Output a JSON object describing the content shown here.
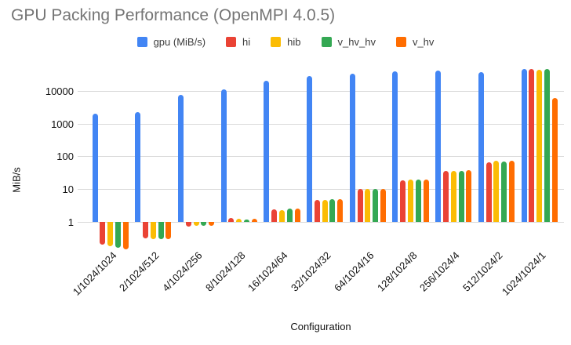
{
  "chart_data": {
    "type": "bar",
    "title": "GPU Packing Performance (OpenMPI 4.0.5)",
    "xlabel": "Configuration",
    "ylabel": "MiB/s",
    "y_scale": "log",
    "ylim": [
      0.1,
      50000
    ],
    "yticks": [
      1,
      10,
      100,
      1000,
      10000
    ],
    "ytick_labels": [
      "1",
      "10",
      "100",
      "1000",
      "10000"
    ],
    "grid": true,
    "legend_position": "top",
    "categories": [
      "1/1024/1024",
      "2/1024/512",
      "4/1024/256",
      "8/1024/128",
      "16/1024/64",
      "32/1024/32",
      "64/1024/16",
      "128/1024/8",
      "256/1024/4",
      "512/1024/2",
      "1024/1024/1"
    ],
    "series": [
      {
        "name": "gpu (MiB/s)",
        "color": "#4285F4",
        "values": [
          2100,
          2400,
          7900,
          11800,
          21000,
          30000,
          36000,
          41000,
          43000,
          40000,
          48000
        ]
      },
      {
        "name": "hi",
        "color": "#EA4335",
        "values": [
          0.2,
          0.31,
          0.72,
          1.3,
          2.4,
          4.8,
          10,
          19,
          36,
          68,
          49000
        ]
      },
      {
        "name": "hib",
        "color": "#FBBC04",
        "values": [
          0.175,
          0.3,
          0.76,
          1.25,
          2.3,
          4.7,
          10,
          20,
          37,
          77,
          47000
        ]
      },
      {
        "name": "v_hv_hv",
        "color": "#34A853",
        "values": [
          0.16,
          0.29,
          0.76,
          1.2,
          2.5,
          4.9,
          10.5,
          20,
          37,
          71,
          50000
        ]
      },
      {
        "name": "v_hv",
        "color": "#FF6D01",
        "values": [
          0.145,
          0.3,
          0.74,
          1.25,
          2.5,
          4.9,
          10,
          20,
          39,
          77,
          6200
        ]
      }
    ]
  }
}
